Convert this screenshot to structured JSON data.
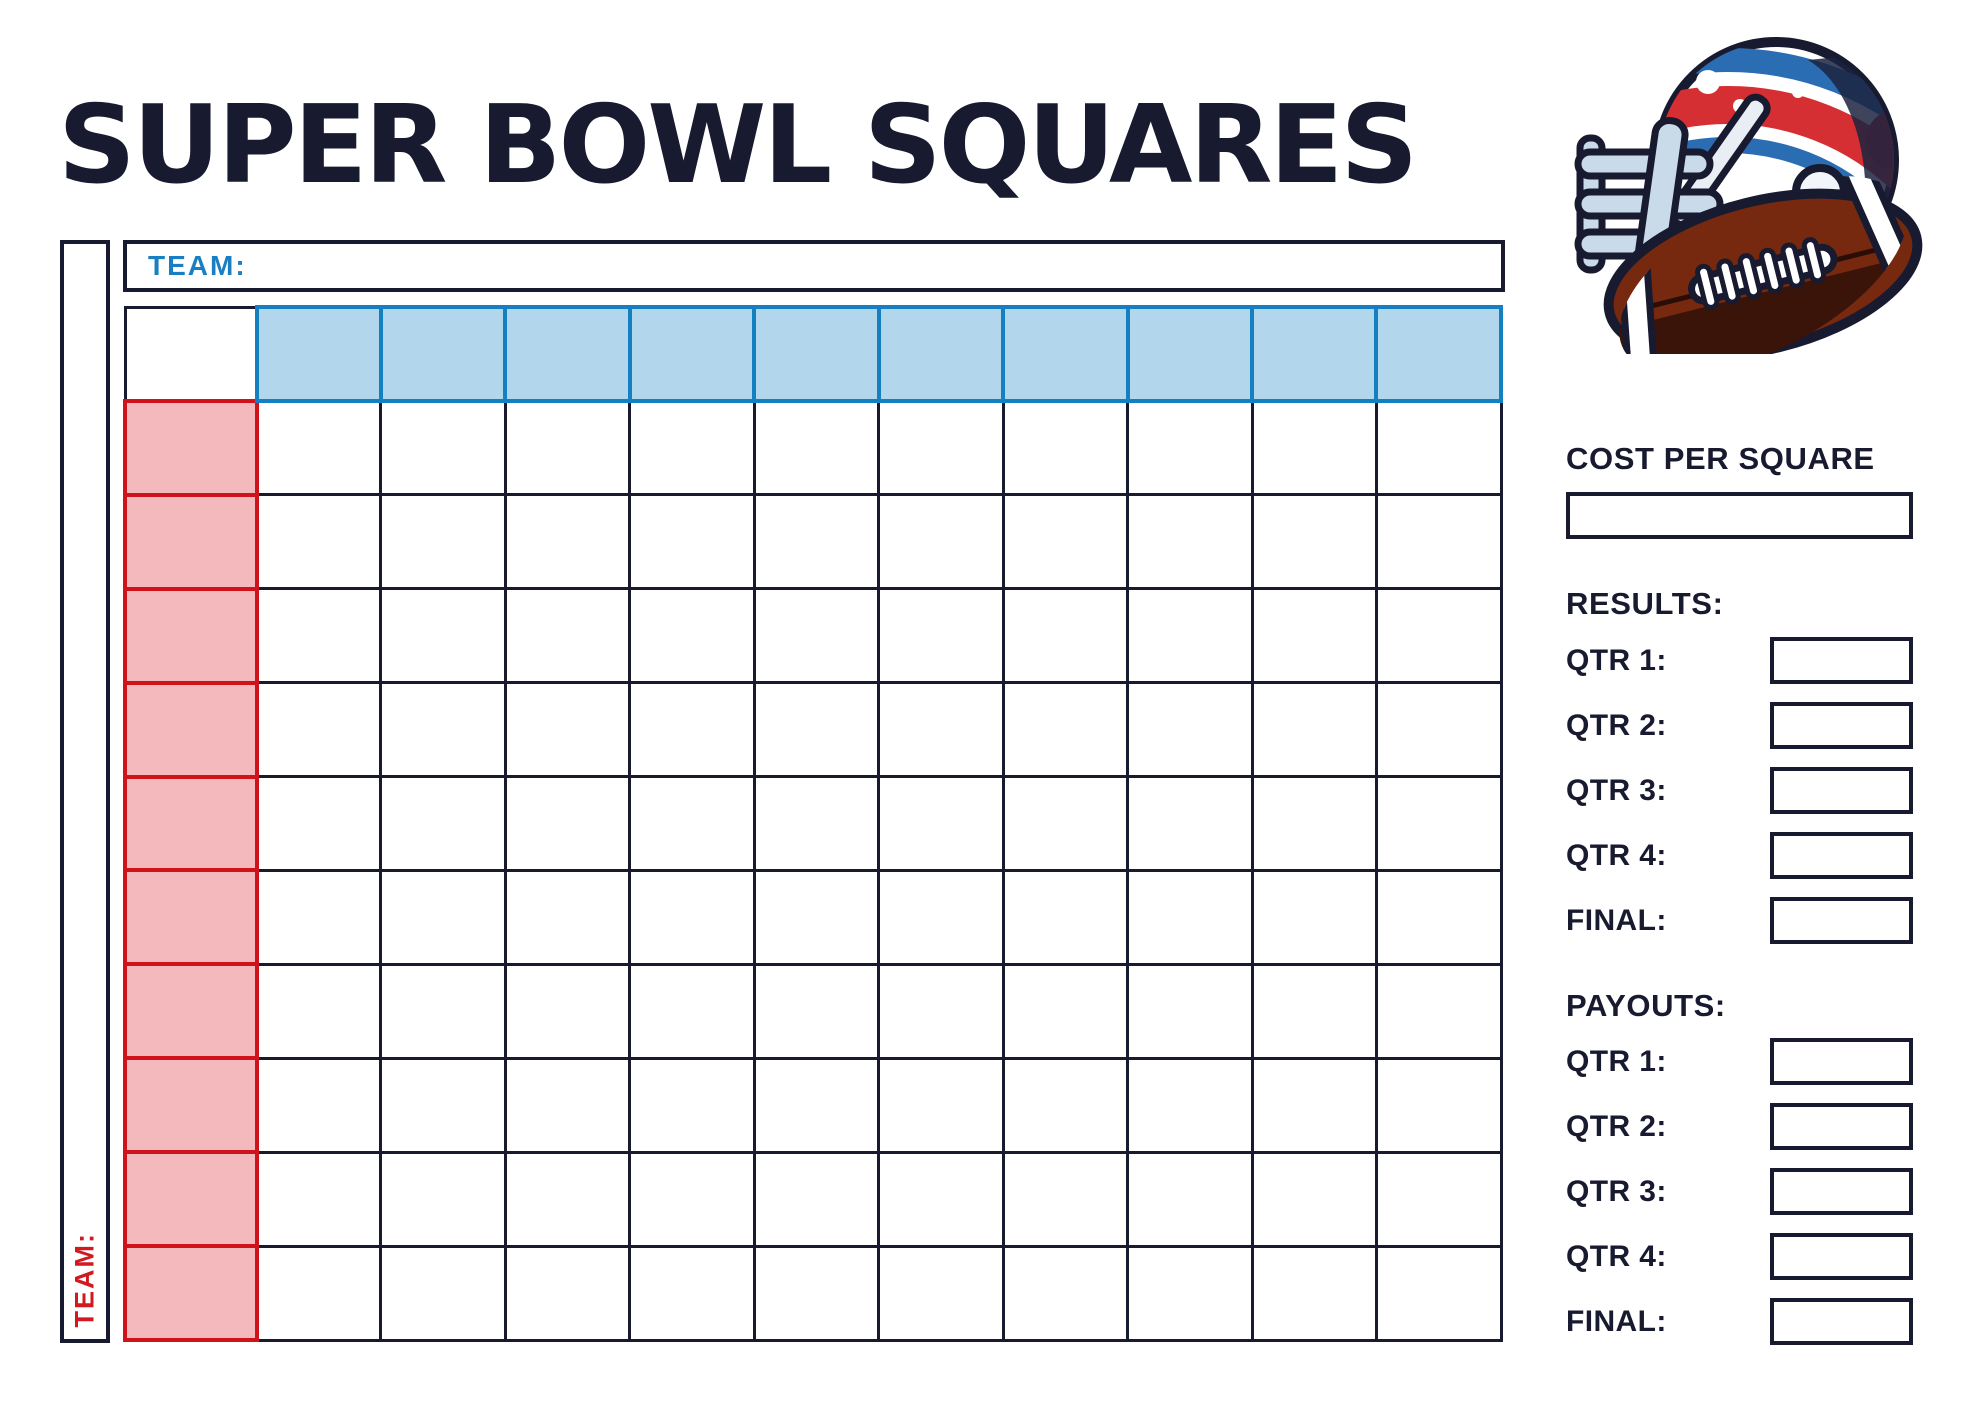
{
  "title": "SUPER BOWL SQUARES",
  "board": {
    "top_team": {
      "label": "TEAM:",
      "value": ""
    },
    "left_team": {
      "label": "TEAM:",
      "value": ""
    },
    "grid": {
      "data_rows": 10,
      "data_cols": 10,
      "header_row_values": [
        "",
        "",
        "",
        "",
        "",
        "",
        "",
        "",
        "",
        ""
      ],
      "header_col_values": [
        "",
        "",
        "",
        "",
        "",
        "",
        "",
        "",
        "",
        ""
      ],
      "cell_values": []
    }
  },
  "sidebar": {
    "cost": {
      "heading": "COST PER SQUARE",
      "value": ""
    },
    "results": {
      "heading": "RESULTS:",
      "rows": [
        {
          "label": "QTR 1:",
          "value": ""
        },
        {
          "label": "QTR 2:",
          "value": ""
        },
        {
          "label": "QTR 3:",
          "value": ""
        },
        {
          "label": "QTR 4:",
          "value": ""
        },
        {
          "label": "FINAL:",
          "value": ""
        }
      ]
    },
    "payouts": {
      "heading": "PAYOUTS:",
      "rows": [
        {
          "label": "QTR 1:",
          "value": ""
        },
        {
          "label": "QTR 2:",
          "value": ""
        },
        {
          "label": "QTR 3:",
          "value": ""
        },
        {
          "label": "QTR 4:",
          "value": ""
        },
        {
          "label": "FINAL:",
          "value": ""
        }
      ]
    }
  },
  "illustration": {
    "name": "football-helmet-and-ball"
  },
  "colors": {
    "navy": "#181a30",
    "grid_blue_border": "#1480c2",
    "grid_blue_fill": "#b2d7ec",
    "grid_red_border": "#d0121a",
    "grid_red_fill": "#f4b9bc",
    "team_label_blue": "#1a7fc0",
    "team_label_red": "#d01a20",
    "ball_brown": "#76290f",
    "stripe_red": "#d62f33",
    "stripe_blue": "#2a6db3"
  }
}
